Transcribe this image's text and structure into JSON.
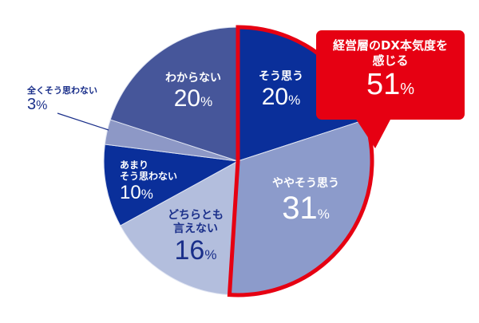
{
  "chart_data": {
    "type": "pie",
    "start": "top",
    "direction": "clockwise",
    "slices": [
      {
        "label": "そう思う",
        "value": 20,
        "color": "#0a2f9a"
      },
      {
        "label": "ややそう思う",
        "value": 31,
        "color": "#8c9bcb"
      },
      {
        "label": "どちらとも言えない",
        "value": 16,
        "color": "#b3bedd"
      },
      {
        "label": "あまりそう思わない",
        "value": 10,
        "color": "#0a2f9a"
      },
      {
        "label": "全くそう思わない",
        "value": 3,
        "color": "#8d98c6"
      },
      {
        "label": "わからない",
        "value": 20,
        "color": "#46569a"
      }
    ],
    "unit": "%",
    "highlight": {
      "label": "経営層のDX本気度を感じる",
      "value": 51,
      "color": "#e60012"
    }
  },
  "labels": {
    "s0": {
      "t": "そう思う",
      "v": "20"
    },
    "s1": {
      "t": "ややそう思う",
      "v": "31"
    },
    "s2": {
      "t1": "どちらとも",
      "t2": "言えない",
      "v": "16"
    },
    "s3": {
      "t1": "あまり",
      "t2": "そう思わない",
      "v": "10"
    },
    "s4": {
      "t": "全くそう思わない",
      "v": "3"
    },
    "s5": {
      "t": "わからない",
      "v": "20"
    },
    "pct": "%",
    "callout": {
      "t1": "経営層のDX本気度を",
      "t2": "感じる",
      "v": "51"
    }
  }
}
